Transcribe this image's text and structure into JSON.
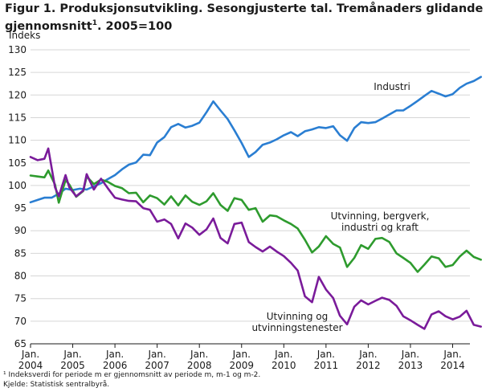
{
  "title": {
    "text": "Figur 1. Produksjonsutvikling. Sesongjusterte tal. Tremånaders glidande gjennomsnitt",
    "sup": "1",
    "suffix": ". 2005=100"
  },
  "footnotes": {
    "note1": "¹ Indeksverdi for periode m er gjennomsnitt av periode m, m-1 og m-2.",
    "source": "Kjelde: Statistisk sentralbyrå."
  },
  "colors": {
    "industri": "#2a7ed2",
    "bergverk": "#2e9b2e",
    "utvinning": "#7a1b9a",
    "grid": "#d6d6d6",
    "axis": "#1a1a1a"
  },
  "chart_data": {
    "type": "line",
    "title": "Figur 1. Produksjonsutvikling. Sesongjusterte tal. Tremånaders glidande gjennomsnitt¹. 2005=100",
    "ylabel": "Indeks",
    "xlabel": "",
    "ylim": [
      65,
      130
    ],
    "yticks": [
      65,
      70,
      75,
      80,
      85,
      90,
      95,
      100,
      105,
      110,
      115,
      120,
      125,
      130
    ],
    "xlim": [
      2004.0,
      2014.917
    ],
    "xticks": [
      {
        "label": "Jan.",
        "year": "2004",
        "x": 2004
      },
      {
        "label": "Jan.",
        "year": "2005",
        "x": 2005
      },
      {
        "label": "Jan.",
        "year": "2006",
        "x": 2006
      },
      {
        "label": "Jan.",
        "year": "2007",
        "x": 2007
      },
      {
        "label": "Jan.",
        "year": "2008",
        "x": 2008
      },
      {
        "label": "Jan.",
        "year": "2009",
        "x": 2009
      },
      {
        "label": "Jan.",
        "year": "2010",
        "x": 2010
      },
      {
        "label": "Jan.",
        "year": "2011",
        "x": 2011
      },
      {
        "label": "Jan.",
        "year": "2012",
        "x": 2012
      },
      {
        "label": "Jan.",
        "year": "2013",
        "x": 2013
      },
      {
        "label": "Jan.",
        "year": "2014",
        "x": 2014
      }
    ],
    "grid": true,
    "series": [
      {
        "name": "Industri",
        "label_lines": [
          "Industri"
        ],
        "color_key": "industri",
        "points": [
          [
            2004.0,
            96.3
          ],
          [
            2004.17,
            96.8
          ],
          [
            2004.33,
            97.3
          ],
          [
            2004.5,
            97.3
          ],
          [
            2004.67,
            98.2
          ],
          [
            2004.83,
            99.3
          ],
          [
            2005.0,
            99.0
          ],
          [
            2005.17,
            99.3
          ],
          [
            2005.33,
            99.1
          ],
          [
            2005.5,
            99.8
          ],
          [
            2005.67,
            100.5
          ],
          [
            2005.83,
            101.4
          ],
          [
            2006.0,
            102.3
          ],
          [
            2006.17,
            103.6
          ],
          [
            2006.33,
            104.6
          ],
          [
            2006.5,
            105.1
          ],
          [
            2006.67,
            106.8
          ],
          [
            2006.83,
            106.7
          ],
          [
            2007.0,
            109.5
          ],
          [
            2007.17,
            110.7
          ],
          [
            2007.33,
            112.9
          ],
          [
            2007.5,
            113.6
          ],
          [
            2007.67,
            112.8
          ],
          [
            2007.83,
            113.2
          ],
          [
            2008.0,
            113.9
          ],
          [
            2008.17,
            116.2
          ],
          [
            2008.33,
            118.6
          ],
          [
            2008.5,
            116.6
          ],
          [
            2008.67,
            114.7
          ],
          [
            2008.83,
            112.2
          ],
          [
            2009.0,
            109.4
          ],
          [
            2009.17,
            106.3
          ],
          [
            2009.33,
            107.4
          ],
          [
            2009.5,
            109.0
          ],
          [
            2009.67,
            109.5
          ],
          [
            2009.83,
            110.2
          ],
          [
            2010.0,
            111.1
          ],
          [
            2010.17,
            111.8
          ],
          [
            2010.33,
            110.9
          ],
          [
            2010.5,
            112.0
          ],
          [
            2010.67,
            112.4
          ],
          [
            2010.83,
            112.9
          ],
          [
            2011.0,
            112.7
          ],
          [
            2011.17,
            113.1
          ],
          [
            2011.33,
            111.1
          ],
          [
            2011.5,
            109.9
          ],
          [
            2011.67,
            112.7
          ],
          [
            2011.83,
            114.0
          ],
          [
            2012.0,
            113.8
          ],
          [
            2012.17,
            114.0
          ],
          [
            2012.33,
            114.8
          ],
          [
            2012.5,
            115.7
          ],
          [
            2012.67,
            116.6
          ],
          [
            2012.83,
            116.6
          ],
          [
            2013.0,
            117.6
          ],
          [
            2013.17,
            118.7
          ],
          [
            2013.33,
            119.8
          ],
          [
            2013.5,
            120.9
          ],
          [
            2013.67,
            120.3
          ],
          [
            2013.83,
            119.7
          ],
          [
            2014.0,
            120.2
          ],
          [
            2014.17,
            121.6
          ],
          [
            2014.33,
            122.5
          ],
          [
            2014.5,
            123.1
          ],
          [
            2014.67,
            124.0
          ]
        ]
      },
      {
        "name": "Utvinning, bergverk, industri og kraft",
        "label_lines": [
          "Utvinning, bergverk,",
          "industri og kraft"
        ],
        "color_key": "bergverk",
        "points": [
          [
            2004.0,
            102.2
          ],
          [
            2004.17,
            102.0
          ],
          [
            2004.33,
            101.8
          ],
          [
            2004.42,
            103.3
          ],
          [
            2004.58,
            100.2
          ],
          [
            2004.67,
            96.2
          ],
          [
            2004.83,
            101.2
          ],
          [
            2004.92,
            100.2
          ],
          [
            2005.08,
            97.5
          ],
          [
            2005.25,
            98.8
          ],
          [
            2005.33,
            102.0
          ],
          [
            2005.5,
            100.3
          ],
          [
            2005.67,
            101.3
          ],
          [
            2005.83,
            100.8
          ],
          [
            2006.0,
            99.9
          ],
          [
            2006.17,
            99.4
          ],
          [
            2006.33,
            98.3
          ],
          [
            2006.5,
            98.4
          ],
          [
            2006.67,
            96.3
          ],
          [
            2006.83,
            97.8
          ],
          [
            2007.0,
            97.2
          ],
          [
            2007.17,
            95.8
          ],
          [
            2007.33,
            97.6
          ],
          [
            2007.5,
            95.6
          ],
          [
            2007.67,
            97.8
          ],
          [
            2007.83,
            96.4
          ],
          [
            2008.0,
            95.7
          ],
          [
            2008.17,
            96.5
          ],
          [
            2008.33,
            98.3
          ],
          [
            2008.5,
            95.7
          ],
          [
            2008.67,
            94.4
          ],
          [
            2008.83,
            97.2
          ],
          [
            2009.0,
            96.8
          ],
          [
            2009.17,
            94.6
          ],
          [
            2009.33,
            95.0
          ],
          [
            2009.5,
            92.0
          ],
          [
            2009.67,
            93.4
          ],
          [
            2009.83,
            93.2
          ],
          [
            2010.0,
            92.3
          ],
          [
            2010.17,
            91.5
          ],
          [
            2010.33,
            90.5
          ],
          [
            2010.5,
            88.0
          ],
          [
            2010.67,
            85.2
          ],
          [
            2010.83,
            86.5
          ],
          [
            2011.0,
            88.8
          ],
          [
            2011.17,
            87.1
          ],
          [
            2011.33,
            86.3
          ],
          [
            2011.5,
            82.0
          ],
          [
            2011.67,
            84.0
          ],
          [
            2011.83,
            86.8
          ],
          [
            2012.0,
            86.0
          ],
          [
            2012.17,
            88.2
          ],
          [
            2012.33,
            88.4
          ],
          [
            2012.5,
            87.5
          ],
          [
            2012.67,
            85.0
          ],
          [
            2012.83,
            84.0
          ],
          [
            2013.0,
            82.9
          ],
          [
            2013.17,
            80.9
          ],
          [
            2013.33,
            82.5
          ],
          [
            2013.5,
            84.3
          ],
          [
            2013.67,
            83.9
          ],
          [
            2013.83,
            82.0
          ],
          [
            2014.0,
            82.4
          ],
          [
            2014.17,
            84.3
          ],
          [
            2014.33,
            85.6
          ],
          [
            2014.5,
            84.2
          ],
          [
            2014.67,
            83.6
          ]
        ]
      },
      {
        "name": "Utvinning og utvinningstenester",
        "label_lines": [
          "Utvinning og",
          "utvinningstenester"
        ],
        "color_key": "utvinning",
        "points": [
          [
            2004.0,
            106.3
          ],
          [
            2004.17,
            105.6
          ],
          [
            2004.33,
            105.9
          ],
          [
            2004.42,
            108.2
          ],
          [
            2004.58,
            99.6
          ],
          [
            2004.67,
            97.6
          ],
          [
            2004.83,
            102.3
          ],
          [
            2004.92,
            99.6
          ],
          [
            2005.08,
            97.6
          ],
          [
            2005.25,
            98.9
          ],
          [
            2005.33,
            102.5
          ],
          [
            2005.5,
            99.1
          ],
          [
            2005.67,
            101.5
          ],
          [
            2005.83,
            99.4
          ],
          [
            2006.0,
            97.3
          ],
          [
            2006.17,
            96.9
          ],
          [
            2006.33,
            96.6
          ],
          [
            2006.5,
            96.5
          ],
          [
            2006.67,
            95.0
          ],
          [
            2006.83,
            94.6
          ],
          [
            2007.0,
            92.0
          ],
          [
            2007.17,
            92.5
          ],
          [
            2007.33,
            91.5
          ],
          [
            2007.5,
            88.3
          ],
          [
            2007.67,
            91.6
          ],
          [
            2007.83,
            90.7
          ],
          [
            2008.0,
            89.1
          ],
          [
            2008.17,
            90.3
          ],
          [
            2008.33,
            92.7
          ],
          [
            2008.5,
            88.4
          ],
          [
            2008.67,
            87.2
          ],
          [
            2008.83,
            91.5
          ],
          [
            2009.0,
            91.8
          ],
          [
            2009.17,
            87.5
          ],
          [
            2009.33,
            86.4
          ],
          [
            2009.5,
            85.4
          ],
          [
            2009.67,
            86.5
          ],
          [
            2009.83,
            85.4
          ],
          [
            2010.0,
            84.4
          ],
          [
            2010.17,
            82.9
          ],
          [
            2010.33,
            81.2
          ],
          [
            2010.5,
            75.5
          ],
          [
            2010.67,
            74.2
          ],
          [
            2010.83,
            79.8
          ],
          [
            2011.0,
            77.0
          ],
          [
            2011.17,
            75.1
          ],
          [
            2011.33,
            71.2
          ],
          [
            2011.5,
            69.3
          ],
          [
            2011.67,
            73.2
          ],
          [
            2011.83,
            74.6
          ],
          [
            2012.0,
            73.7
          ],
          [
            2012.17,
            74.5
          ],
          [
            2012.33,
            75.2
          ],
          [
            2012.5,
            74.7
          ],
          [
            2012.67,
            73.4
          ],
          [
            2012.83,
            71.1
          ],
          [
            2013.0,
            70.2
          ],
          [
            2013.17,
            69.2
          ],
          [
            2013.33,
            68.3
          ],
          [
            2013.5,
            71.5
          ],
          [
            2013.67,
            72.2
          ],
          [
            2013.83,
            71.1
          ],
          [
            2014.0,
            70.4
          ],
          [
            2014.17,
            71.0
          ],
          [
            2014.33,
            72.3
          ],
          [
            2014.5,
            69.2
          ],
          [
            2014.67,
            68.8
          ]
        ]
      }
    ]
  }
}
